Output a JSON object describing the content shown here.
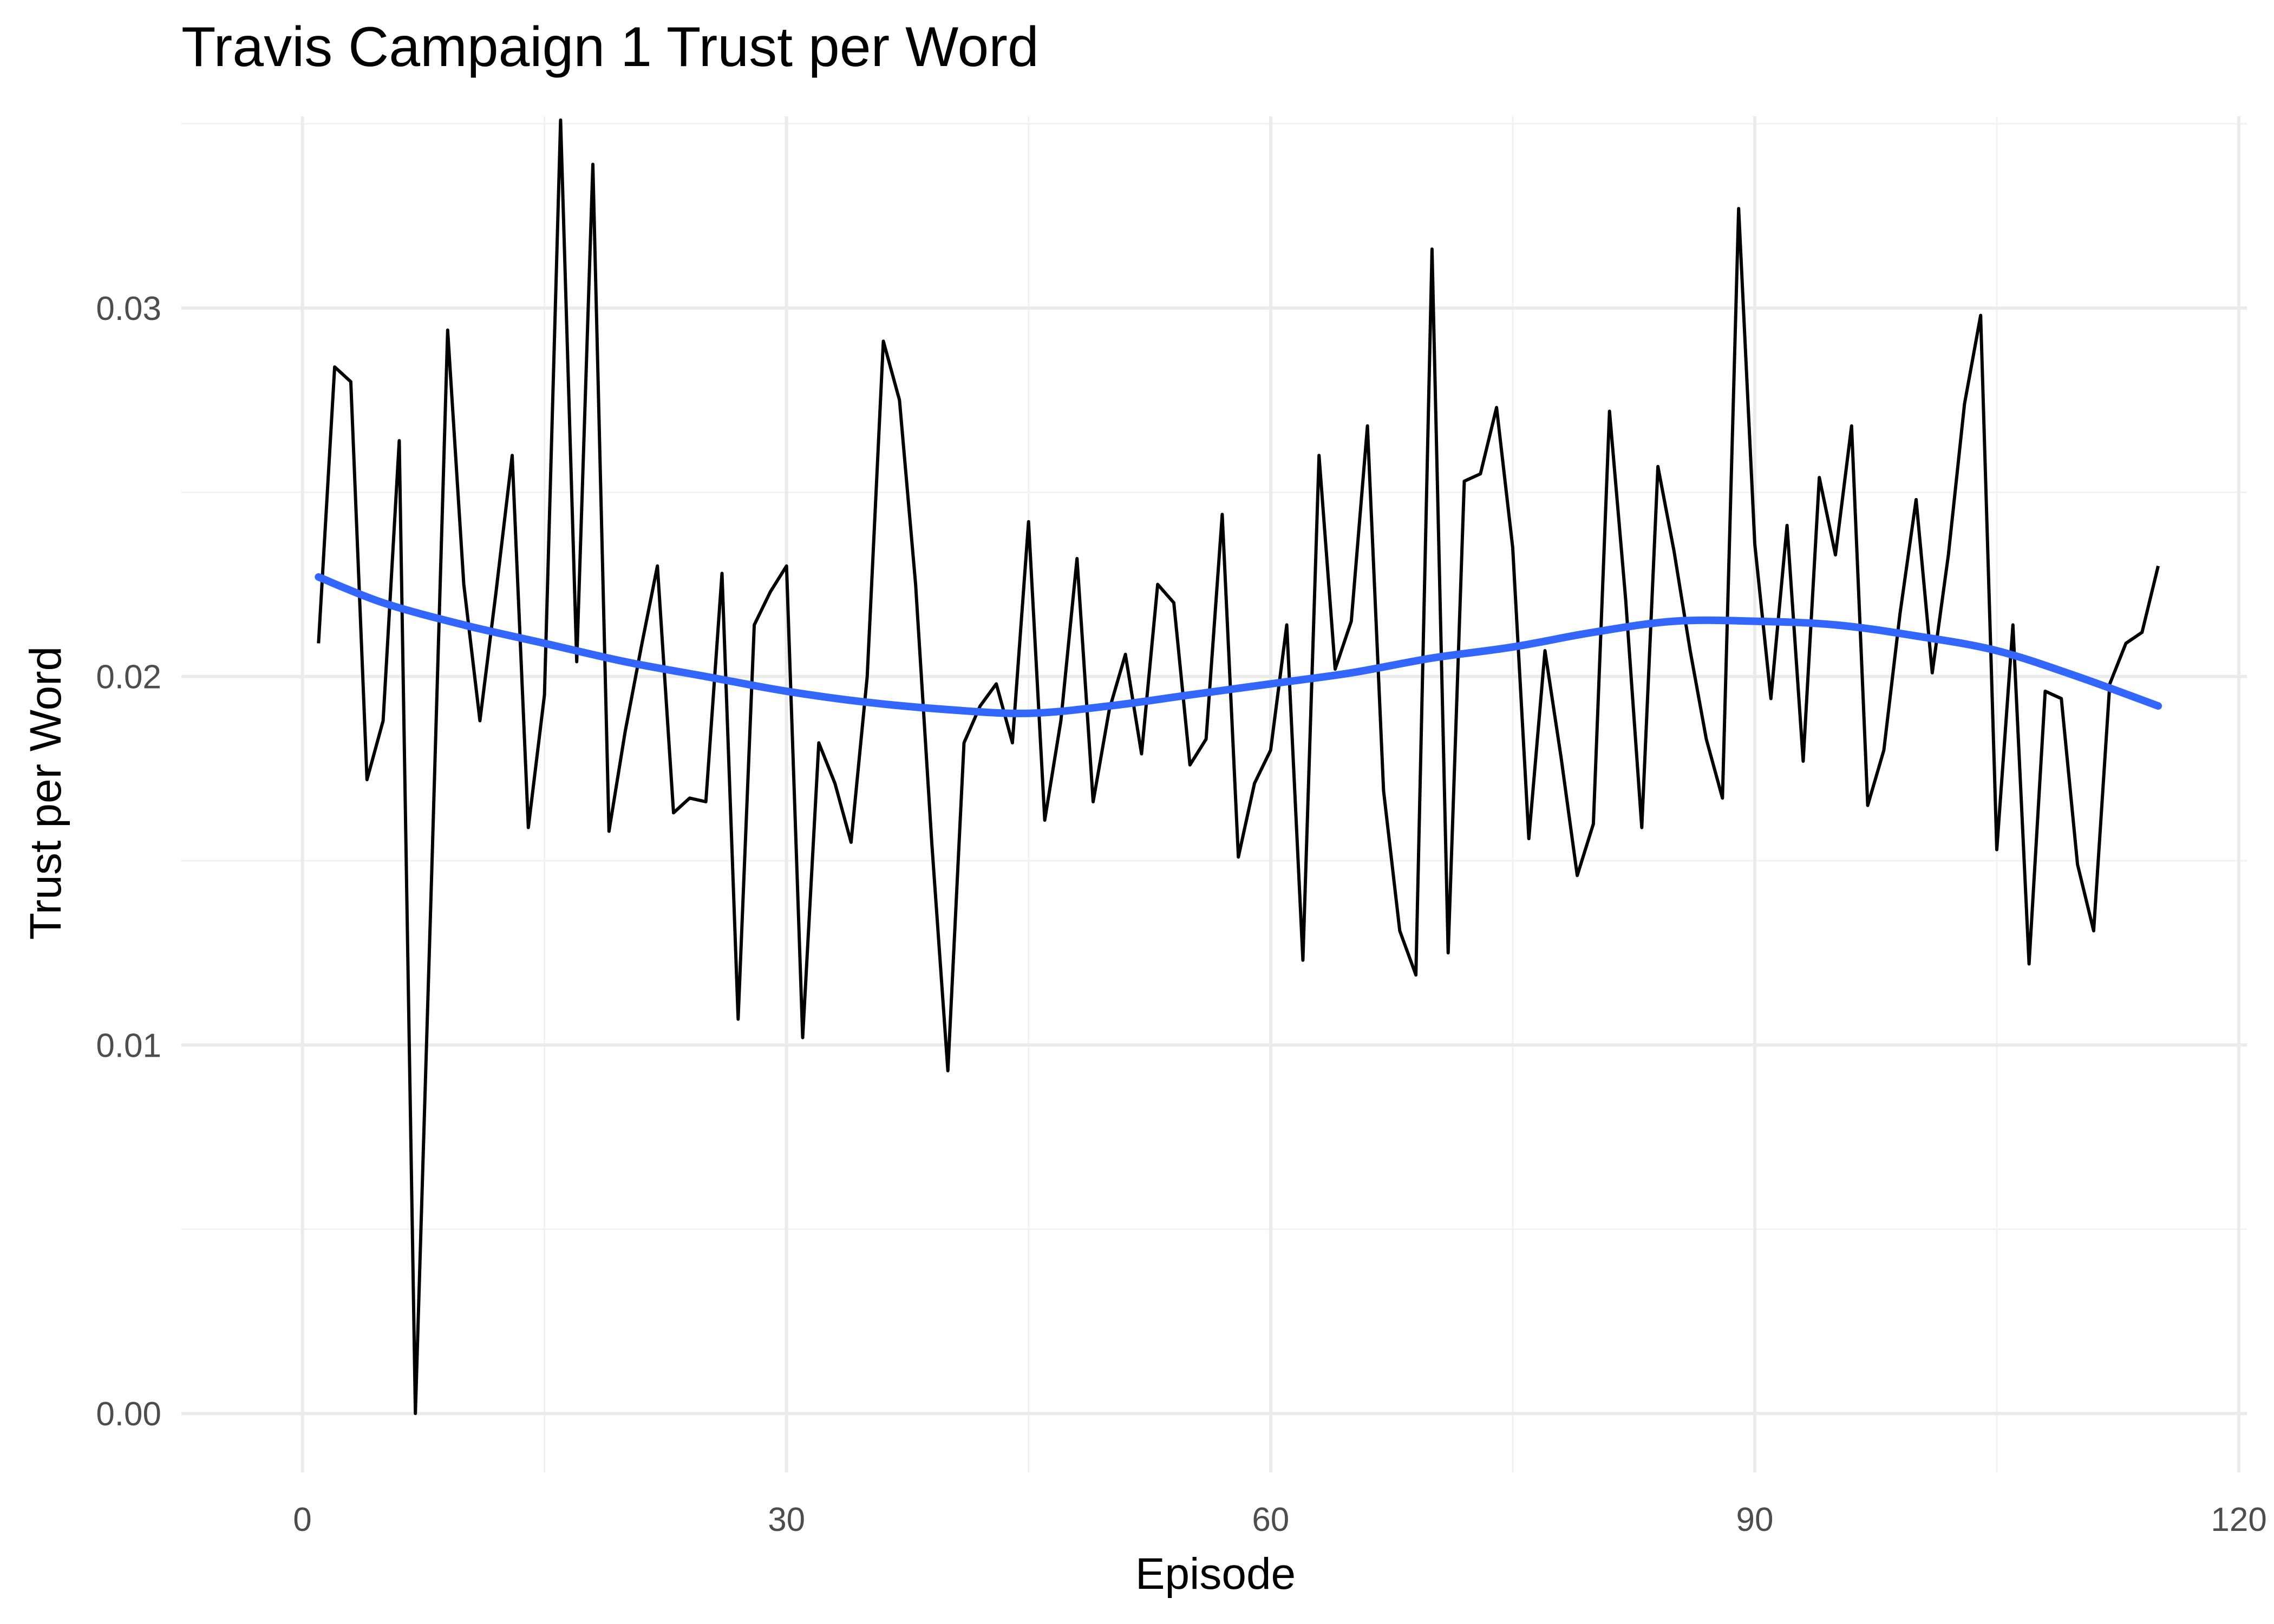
{
  "chart_data": {
    "type": "line",
    "title": "Travis Campaign 1 Trust per Word",
    "xlabel": "Episode",
    "ylabel": "Trust per Word",
    "xlim": [
      -7.5,
      120.5
    ],
    "ylim": [
      -0.0016,
      0.0352
    ],
    "x_ticks": [
      0,
      30,
      60,
      90,
      120
    ],
    "x_tick_labels": [
      "0",
      "30",
      "60",
      "90",
      "120"
    ],
    "y_ticks": [
      0.0,
      0.01,
      0.02,
      0.03
    ],
    "y_tick_labels": [
      "0.00",
      "0.01",
      "0.02",
      "0.03"
    ],
    "grid": true,
    "legend": "none",
    "series": [
      {
        "style": "line",
        "color": "#000000",
        "x": [
          1,
          2,
          3,
          4,
          5,
          6,
          7,
          8,
          9,
          10,
          11,
          12,
          13,
          14,
          15,
          16,
          17,
          18,
          19,
          20,
          21,
          22,
          23,
          24,
          25,
          26,
          27,
          28,
          29,
          30,
          31,
          32,
          33,
          34,
          35,
          36,
          37,
          38,
          39,
          40,
          41,
          42,
          43,
          44,
          45,
          46,
          47,
          48,
          49,
          50,
          51,
          52,
          53,
          54,
          55,
          56,
          57,
          58,
          59,
          60,
          61,
          62,
          63,
          64,
          65,
          66,
          67,
          68,
          69,
          70,
          71,
          72,
          73,
          74,
          75,
          76,
          77,
          78,
          79,
          80,
          81,
          82,
          83,
          84,
          85,
          86,
          87,
          88,
          89,
          90,
          91,
          92,
          93,
          94,
          95,
          96,
          97,
          98,
          99,
          100,
          101,
          102,
          103,
          104,
          105,
          106,
          107,
          108,
          109,
          110,
          111,
          112,
          113,
          114,
          115
        ],
        "values": [
          0.0209,
          0.0284,
          0.028,
          0.0172,
          0.0188,
          0.0264,
          0.0,
          0.0145,
          0.0294,
          0.0225,
          0.0188,
          0.0223,
          0.026,
          0.0159,
          0.0195,
          0.0351,
          0.0204,
          0.0339,
          0.0158,
          0.0185,
          0.0208,
          0.023,
          0.0163,
          0.0167,
          0.0166,
          0.0228,
          0.0107,
          0.0214,
          0.0223,
          0.023,
          0.0102,
          0.0182,
          0.0171,
          0.0155,
          0.02,
          0.0291,
          0.0275,
          0.0225,
          0.0155,
          0.0093,
          0.0182,
          0.0192,
          0.0198,
          0.0182,
          0.0242,
          0.0161,
          0.0188,
          0.0232,
          0.0166,
          0.0191,
          0.0206,
          0.0179,
          0.0225,
          0.022,
          0.0176,
          0.0183,
          0.0244,
          0.0151,
          0.0171,
          0.018,
          0.0214,
          0.0123,
          0.026,
          0.0202,
          0.0215,
          0.0268,
          0.0169,
          0.0131,
          0.0119,
          0.0316,
          0.0125,
          0.0253,
          0.0255,
          0.0273,
          0.0235,
          0.0156,
          0.0207,
          0.0178,
          0.0146,
          0.016,
          0.0272,
          0.0221,
          0.0159,
          0.0257,
          0.0234,
          0.0207,
          0.0183,
          0.0167,
          0.0327,
          0.0236,
          0.0194,
          0.0241,
          0.0177,
          0.0254,
          0.0233,
          0.0268,
          0.0165,
          0.018,
          0.0217,
          0.0248,
          0.0201,
          0.0233,
          0.0274,
          0.0298,
          0.0153,
          0.0214,
          0.0122,
          0.0196,
          0.0194,
          0.0149,
          0.0131,
          0.0198,
          0.0209,
          0.0212,
          0.023
        ]
      },
      {
        "style": "smooth",
        "color": "#3366FF",
        "x": [
          1,
          5,
          10,
          15,
          20,
          25,
          30,
          35,
          40,
          45,
          50,
          55,
          60,
          65,
          70,
          75,
          80,
          85,
          90,
          95,
          100,
          105,
          110,
          115
        ],
        "values": [
          0.0227,
          0.022,
          0.0214,
          0.0209,
          0.0204,
          0.02,
          0.0196,
          0.0193,
          0.0191,
          0.019,
          0.0192,
          0.0195,
          0.0198,
          0.0201,
          0.0205,
          0.0208,
          0.0212,
          0.0215,
          0.0215,
          0.0214,
          0.0211,
          0.0207,
          0.02,
          0.0192
        ]
      }
    ]
  }
}
